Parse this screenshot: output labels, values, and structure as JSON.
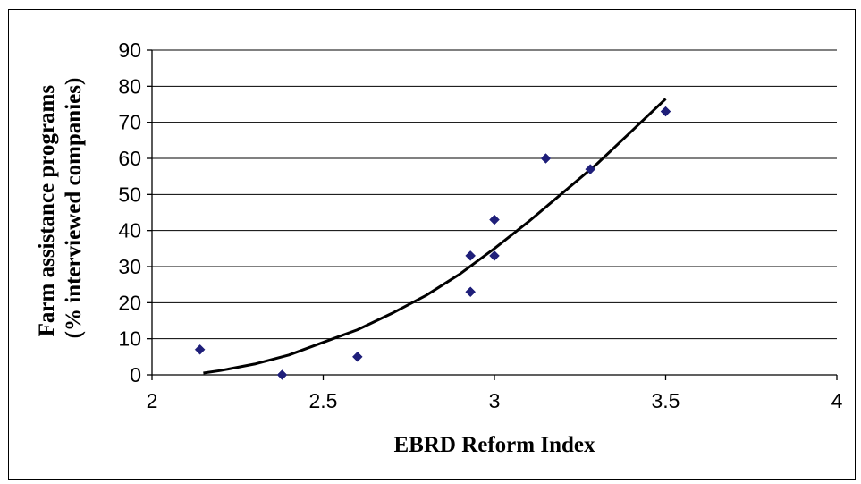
{
  "chart_data": {
    "type": "scatter",
    "xlabel": "EBRD Reform Index",
    "ylabel_lines": [
      "Farm assistance programs",
      "(% interviewed companies)"
    ],
    "xlim": [
      2,
      4
    ],
    "ylim": [
      0,
      90
    ],
    "x_ticks": [
      "2",
      "2.5",
      "3",
      "3.5",
      "4"
    ],
    "y_ticks": [
      "0",
      "10",
      "20",
      "30",
      "40",
      "50",
      "60",
      "70",
      "80",
      "90"
    ],
    "grid": "horizontal",
    "legend": "none",
    "marker_color": "#1f1f7a",
    "trend_color": "#000000",
    "points": [
      {
        "x": 2.14,
        "y": 7
      },
      {
        "x": 2.38,
        "y": 0
      },
      {
        "x": 2.6,
        "y": 5
      },
      {
        "x": 2.93,
        "y": 23
      },
      {
        "x": 2.93,
        "y": 33
      },
      {
        "x": 3.0,
        "y": 33
      },
      {
        "x": 3.0,
        "y": 43
      },
      {
        "x": 3.15,
        "y": 60
      },
      {
        "x": 3.28,
        "y": 57
      },
      {
        "x": 3.5,
        "y": 73
      }
    ],
    "trendline": {
      "type": "polynomial",
      "x": [
        2.15,
        2.2,
        2.3,
        2.4,
        2.5,
        2.6,
        2.7,
        2.8,
        2.9,
        3.0,
        3.1,
        3.2,
        3.3,
        3.4,
        3.5
      ],
      "y": [
        0.5,
        1.2,
        3.0,
        5.5,
        9.0,
        12.5,
        17.0,
        22.0,
        28.0,
        35.0,
        42.5,
        50.5,
        58.5,
        67.5,
        76.5
      ]
    }
  }
}
